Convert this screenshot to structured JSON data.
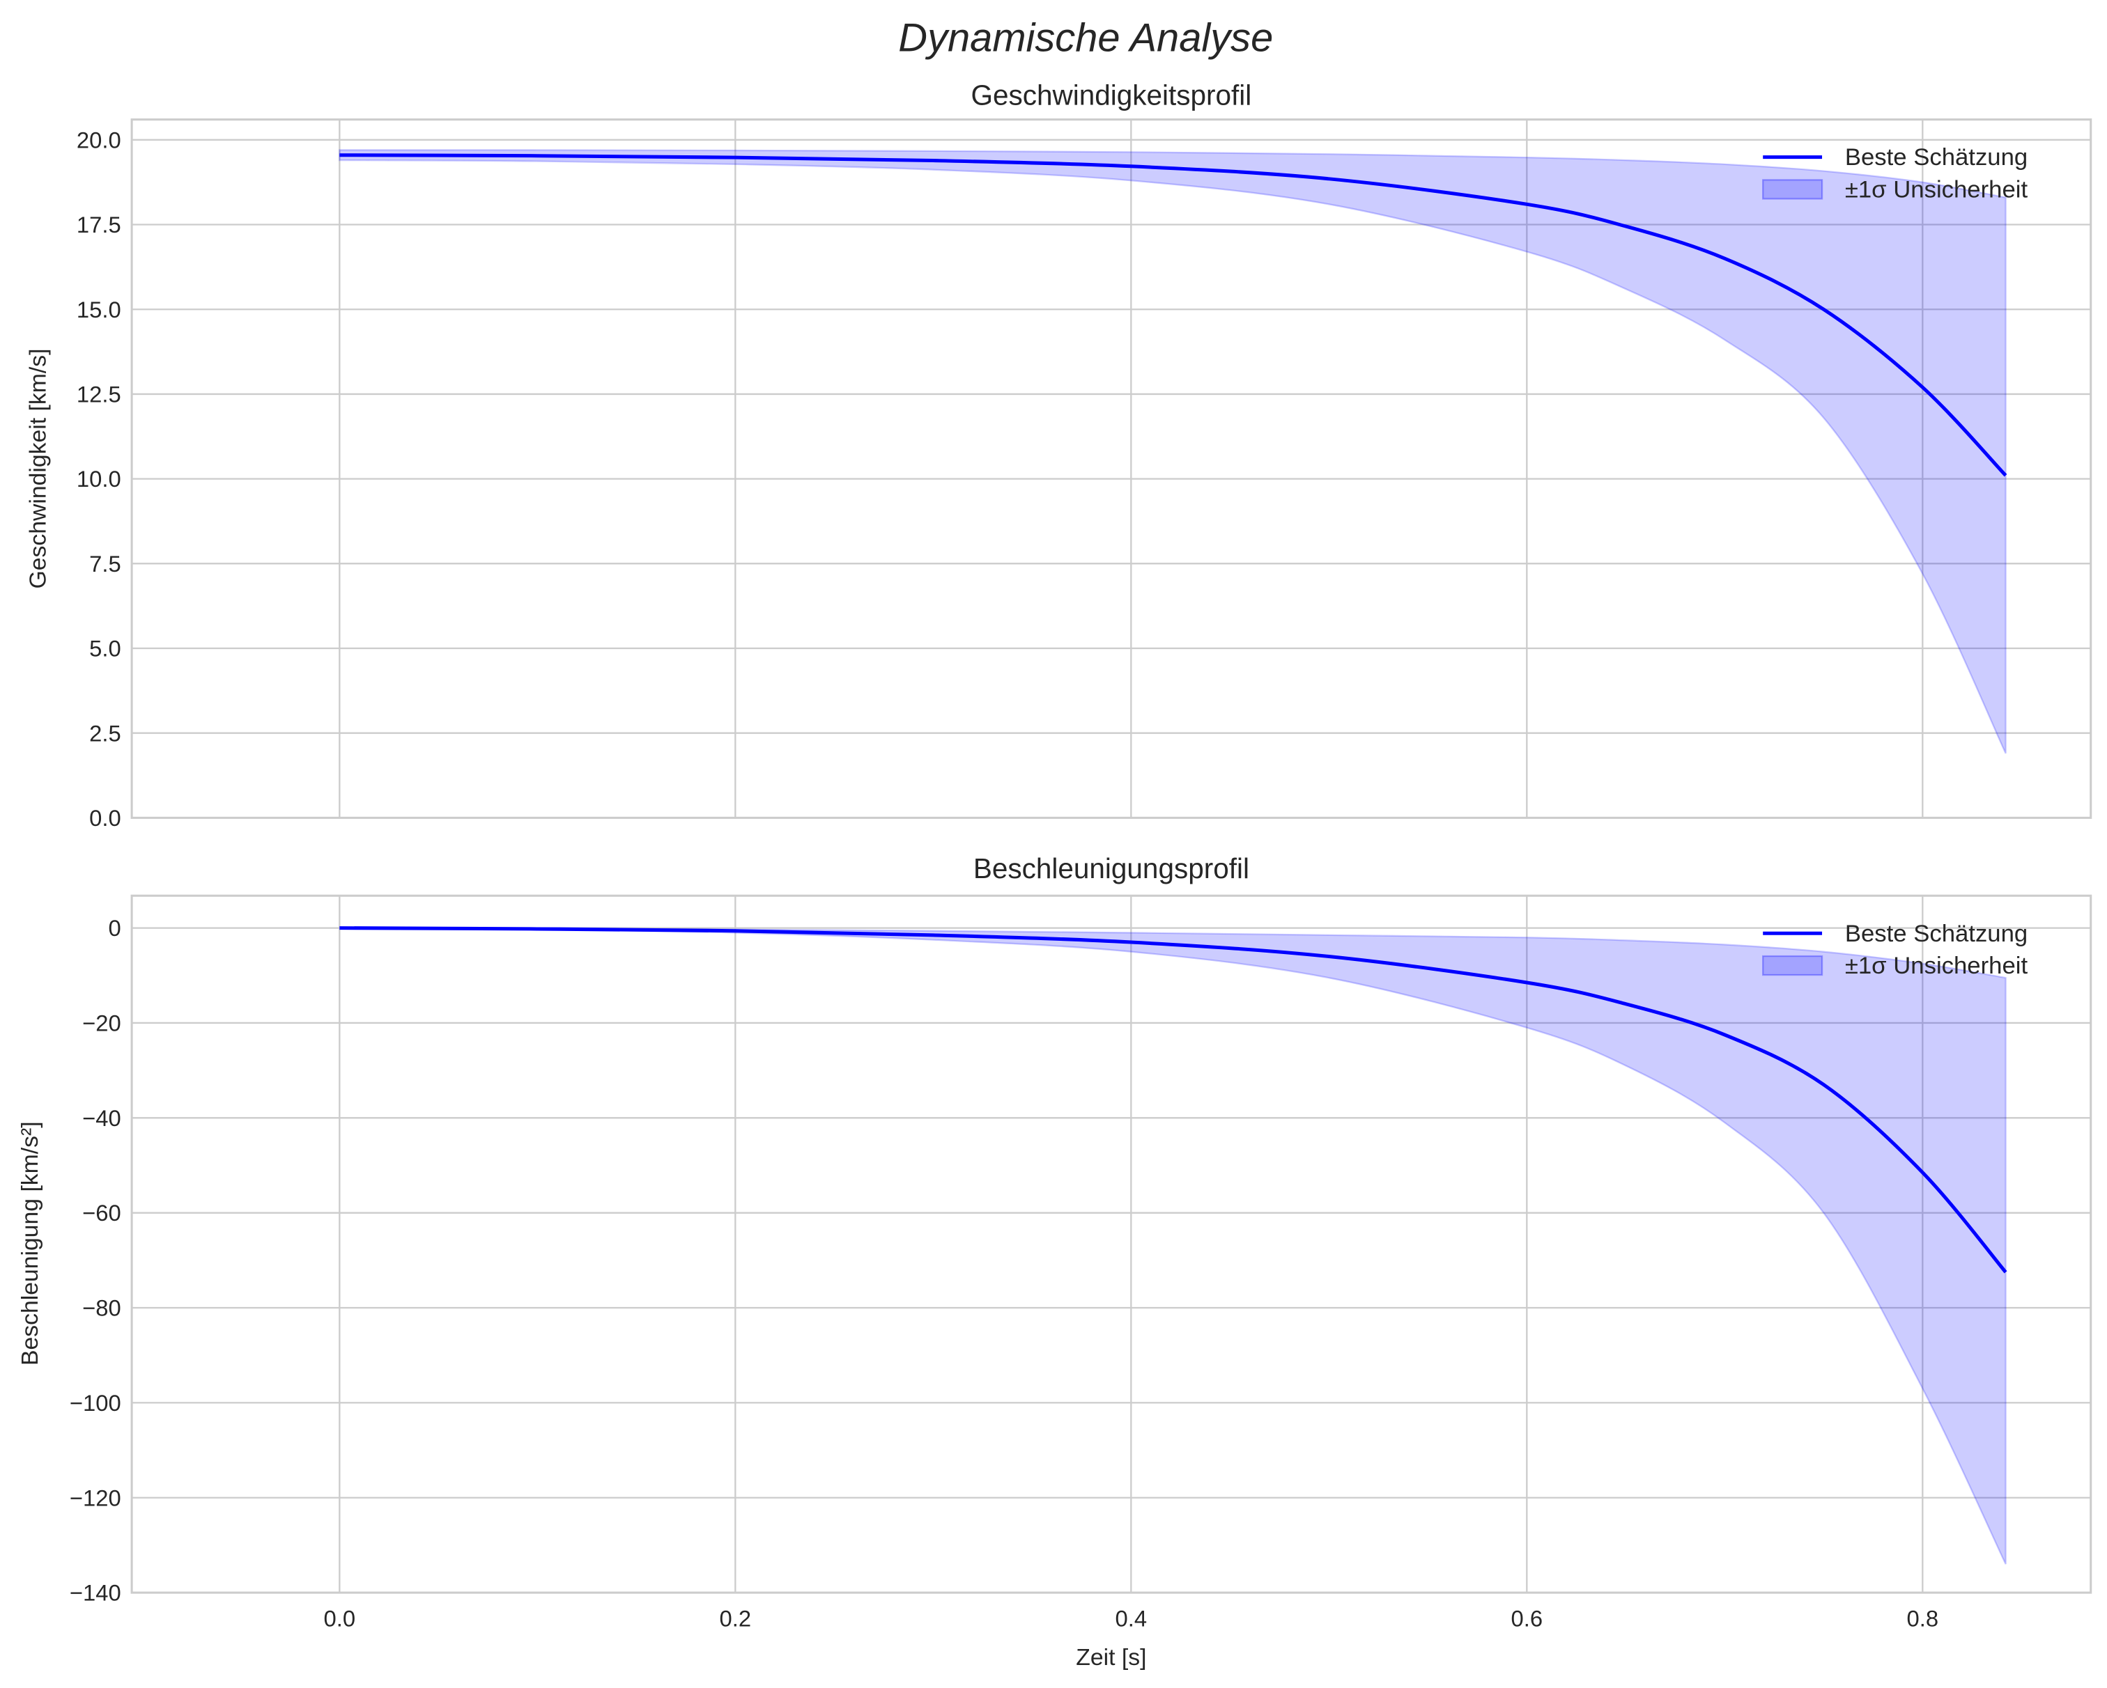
{
  "chart_data": [
    {
      "type": "line",
      "suptitle": "Dynamische Analyse",
      "title": "Geschwindigkeitsprofil",
      "xlabel": "",
      "ylabel": "Geschwindigkeit [km/s]",
      "xlim": [
        -0.105,
        0.885
      ],
      "ylim": [
        0,
        20.6
      ],
      "yticks": [
        0,
        2.5,
        5,
        7.5,
        10,
        12.5,
        15,
        17.5,
        20
      ],
      "ytick_labels": [
        "0.0",
        "2.5",
        "5.0",
        "7.5",
        "10.0",
        "12.5",
        "15.0",
        "17.5",
        "20.0"
      ],
      "xticks": [
        0,
        0.2,
        0.4,
        0.6,
        0.8
      ],
      "grid": true,
      "legend": {
        "placement": "top-right",
        "entries": [
          "Beste Schätzung",
          "±1σ Unsicherheit"
        ]
      },
      "series": [
        {
          "name": "Beste Schätzung",
          "color": "#0000ff",
          "x": [
            0,
            0.1,
            0.2,
            0.3,
            0.4,
            0.5,
            0.6,
            0.65,
            0.7,
            0.75,
            0.8,
            0.842
          ],
          "y": [
            19.55,
            19.53,
            19.48,
            19.39,
            19.22,
            18.85,
            18.1,
            17.45,
            16.5,
            15.0,
            12.7,
            10.1
          ]
        },
        {
          "name": "±1σ Unsicherheit",
          "type": "band",
          "color": "#0000ff",
          "x": [
            0,
            0.1,
            0.2,
            0.3,
            0.4,
            0.5,
            0.6,
            0.65,
            0.7,
            0.75,
            0.8,
            0.842
          ],
          "upper": [
            19.7,
            19.7,
            19.69,
            19.67,
            19.64,
            19.58,
            19.48,
            19.4,
            19.28,
            19.08,
            18.75,
            18.3
          ],
          "lower": [
            19.4,
            19.37,
            19.28,
            19.12,
            18.8,
            18.1,
            16.7,
            15.6,
            14.1,
            11.8,
            7.2,
            1.9
          ]
        }
      ]
    },
    {
      "type": "line",
      "title": "Beschleunigungsprofil",
      "xlabel": "Zeit [s]",
      "ylabel": "Beschleunigung [km/s²]",
      "xlim": [
        -0.105,
        0.885
      ],
      "ylim": [
        -140,
        6.8
      ],
      "yticks": [
        0,
        -20,
        -40,
        -60,
        -80,
        -100,
        -120,
        -140
      ],
      "ytick_labels": [
        "0",
        "−20",
        "−40",
        "−60",
        "−80",
        "−100",
        "−120",
        "−140"
      ],
      "xticks": [
        0,
        0.2,
        0.4,
        0.6,
        0.8
      ],
      "xtick_labels": [
        "0.0",
        "0.2",
        "0.4",
        "0.6",
        "0.8"
      ],
      "grid": true,
      "legend": {
        "placement": "top-right",
        "entries": [
          "Beste Schätzung",
          "±1σ Unsicherheit"
        ]
      },
      "series": [
        {
          "name": "Beste Schätzung",
          "color": "#0000ff",
          "x": [
            0,
            0.1,
            0.2,
            0.3,
            0.4,
            0.5,
            0.6,
            0.65,
            0.7,
            0.75,
            0.8,
            0.842
          ],
          "y": [
            0,
            -0.2,
            -0.6,
            -1.5,
            -3.0,
            -6.0,
            -11.5,
            -16.0,
            -22.5,
            -33.0,
            -51.5,
            -72.5
          ]
        },
        {
          "name": "±1σ Unsicherheit",
          "type": "band",
          "color": "#0000ff",
          "x": [
            0,
            0.1,
            0.2,
            0.3,
            0.4,
            0.5,
            0.6,
            0.65,
            0.7,
            0.75,
            0.8,
            0.842
          ],
          "upper": [
            0,
            -0.1,
            -0.3,
            -0.6,
            -1.0,
            -1.5,
            -2.0,
            -2.6,
            -3.5,
            -5.0,
            -7.5,
            -10.5
          ],
          "lower": [
            0,
            -0.3,
            -1.0,
            -2.5,
            -5.0,
            -10.5,
            -21.0,
            -29.0,
            -41.0,
            -60.0,
            -97.0,
            -134.0
          ]
        }
      ]
    }
  ]
}
